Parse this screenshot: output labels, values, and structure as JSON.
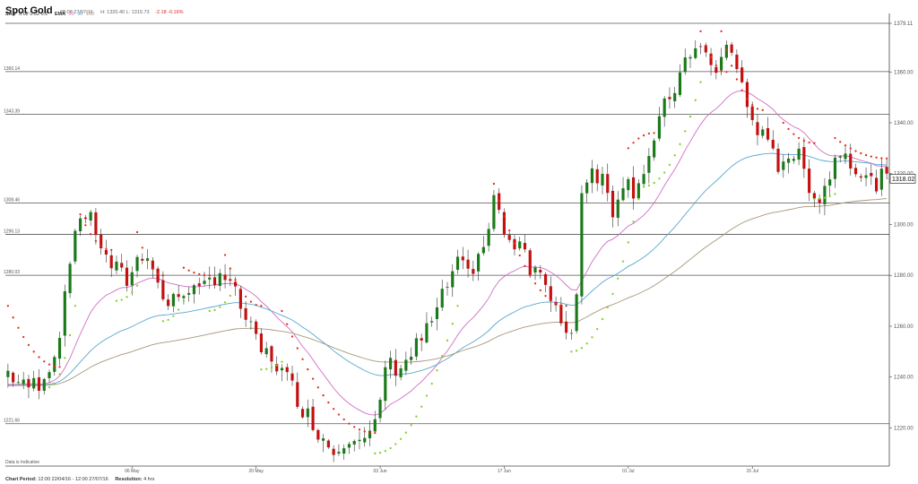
{
  "header": {
    "title": "Spot Gold",
    "datetime": "08:08 27/07/16",
    "hl": "H: 1320.40  L: 1315.73",
    "change": "-2.18  -0.16%"
  },
  "indicators": {
    "sar_label": "SAR",
    "sar_params": "0.02  0.02  0.2",
    "ema_label": "EMA",
    "ema_p1": "20",
    "ema_p2": "50",
    "ema_p3": "100"
  },
  "footer": {
    "period_label": "Chart Period:",
    "period_value": "12:00 22/04/16 - 12:00 27/07/16",
    "resolution_label": "Resolution:",
    "resolution_value": "4 hrs",
    "disclaimer": "Data is Indicative"
  },
  "colors": {
    "up": "#1a7a1a",
    "down": "#c41010",
    "sar_up": "#7ed321",
    "sar_down": "#e0301e",
    "ema20": "#d16ec4",
    "ema50": "#58a8d0",
    "ema100": "#a89878",
    "hline": "#555555",
    "axis": "#444444"
  },
  "chart_data": {
    "type": "candlestick",
    "ylim": [
      1205,
      1383
    ],
    "yticks": [
      "1220.00",
      "1240.00",
      "1260.00",
      "1280.00",
      "1300.00",
      "1320.00",
      "1340.00",
      "1360.00",
      "1379.11"
    ],
    "ytick_values": [
      1220,
      1240,
      1260,
      1280,
      1300,
      1320,
      1340,
      1360,
      1379.11
    ],
    "last_price": "1318.02",
    "last_value": 1318.02,
    "xticks": [
      "06 May",
      "20 May",
      "03 Jun",
      "17 Jun",
      "01 Jul",
      "15 Jul"
    ],
    "xtick_index": [
      24,
      48,
      72,
      96,
      120,
      144
    ],
    "hlines": [
      {
        "label": "1360.14",
        "value": 1360.14
      },
      {
        "label": "1343.39",
        "value": 1343.39
      },
      {
        "label": "1308.46",
        "value": 1308.46
      },
      {
        "label": "1296.13",
        "value": 1296.13
      },
      {
        "label": "1280.03",
        "value": 1280.03
      },
      {
        "label": "1221.66",
        "value": 1221.66
      }
    ],
    "anchors": [
      [
        0,
        1242
      ],
      [
        3,
        1236
      ],
      [
        6,
        1238
      ],
      [
        9,
        1248
      ],
      [
        11,
        1270
      ],
      [
        13,
        1300
      ],
      [
        15,
        1304
      ],
      [
        17,
        1298
      ],
      [
        19,
        1286
      ],
      [
        21,
        1282
      ],
      [
        23,
        1278
      ],
      [
        25,
        1286
      ],
      [
        27,
        1290
      ],
      [
        29,
        1276
      ],
      [
        31,
        1268
      ],
      [
        33,
        1272
      ],
      [
        35,
        1276
      ],
      [
        37,
        1272
      ],
      [
        39,
        1278
      ],
      [
        41,
        1282
      ],
      [
        43,
        1276
      ],
      [
        45,
        1268
      ],
      [
        47,
        1258
      ],
      [
        49,
        1250
      ],
      [
        51,
        1248
      ],
      [
        53,
        1242
      ],
      [
        55,
        1236
      ],
      [
        57,
        1228
      ],
      [
        59,
        1222
      ],
      [
        61,
        1216
      ],
      [
        63,
        1211
      ],
      [
        65,
        1216
      ],
      [
        67,
        1218
      ],
      [
        69,
        1214
      ],
      [
        71,
        1220
      ],
      [
        72,
        1230
      ],
      [
        73,
        1245
      ],
      [
        75,
        1244
      ],
      [
        77,
        1246
      ],
      [
        79,
        1252
      ],
      [
        81,
        1258
      ],
      [
        83,
        1266
      ],
      [
        85,
        1276
      ],
      [
        87,
        1284
      ],
      [
        89,
        1280
      ],
      [
        91,
        1288
      ],
      [
        93,
        1296
      ],
      [
        94,
        1312
      ],
      [
        95,
        1304
      ],
      [
        97,
        1290
      ],
      [
        99,
        1296
      ],
      [
        101,
        1284
      ],
      [
        103,
        1282
      ],
      [
        105,
        1268
      ],
      [
        107,
        1262
      ],
      [
        109,
        1258
      ],
      [
        110,
        1272
      ],
      [
        111,
        1315
      ],
      [
        113,
        1322
      ],
      [
        115,
        1318
      ],
      [
        117,
        1306
      ],
      [
        119,
        1318
      ],
      [
        121,
        1314
      ],
      [
        123,
        1322
      ],
      [
        125,
        1332
      ],
      [
        127,
        1346
      ],
      [
        129,
        1354
      ],
      [
        131,
        1362
      ],
      [
        133,
        1372
      ],
      [
        135,
        1366
      ],
      [
        137,
        1358
      ],
      [
        139,
        1372
      ],
      [
        141,
        1362
      ],
      [
        143,
        1346
      ],
      [
        145,
        1338
      ],
      [
        147,
        1330
      ],
      [
        149,
        1324
      ],
      [
        151,
        1328
      ],
      [
        153,
        1326
      ],
      [
        155,
        1316
      ],
      [
        157,
        1310
      ],
      [
        159,
        1320
      ],
      [
        161,
        1330
      ],
      [
        163,
        1326
      ],
      [
        165,
        1320
      ],
      [
        167,
        1316
      ],
      [
        169,
        1318
      ],
      [
        170,
        1318
      ]
    ],
    "sar": [
      {
        "start": 0,
        "end": 10,
        "dir": "down",
        "from": 1268,
        "to": 1244
      },
      {
        "start": 8,
        "end": 13,
        "dir": "up",
        "from": 1236,
        "to": 1268
      },
      {
        "start": 14,
        "end": 20,
        "dir": "down",
        "from": 1304,
        "to": 1290
      },
      {
        "start": 21,
        "end": 25,
        "dir": "up",
        "from": 1270,
        "to": 1276
      },
      {
        "start": 25,
        "end": 30,
        "dir": "down",
        "from": 1297,
        "to": 1280
      },
      {
        "start": 30,
        "end": 34,
        "dir": "up",
        "from": 1262,
        "to": 1270
      },
      {
        "start": 34,
        "end": 39,
        "dir": "down",
        "from": 1283,
        "to": 1280
      },
      {
        "start": 39,
        "end": 43,
        "dir": "up",
        "from": 1266,
        "to": 1272
      },
      {
        "start": 42,
        "end": 49,
        "dir": "down",
        "from": 1288,
        "to": 1268
      },
      {
        "start": 49,
        "end": 53,
        "dir": "up",
        "from": 1243,
        "to": 1246
      },
      {
        "start": 53,
        "end": 71,
        "dir": "down",
        "from": 1266,
        "to": 1218
      },
      {
        "start": 71,
        "end": 87,
        "dir": "up",
        "from": 1210,
        "to": 1268
      },
      {
        "start": 94,
        "end": 108,
        "dir": "down",
        "from": 1316,
        "to": 1268
      },
      {
        "start": 109,
        "end": 122,
        "dir": "up",
        "from": 1250,
        "to": 1310
      },
      {
        "start": 120,
        "end": 125,
        "dir": "down",
        "from": 1330,
        "to": 1336
      },
      {
        "start": 123,
        "end": 134,
        "dir": "up",
        "from": 1315,
        "to": 1356
      },
      {
        "start": 134,
        "end": 139,
        "dir": "down",
        "from": 1376,
        "to": 1360
      },
      {
        "start": 138,
        "end": 146,
        "dir": "down",
        "from": 1376,
        "to": 1345
      },
      {
        "start": 150,
        "end": 156,
        "dir": "down",
        "from": 1340,
        "to": 1332
      },
      {
        "start": 156,
        "end": 160,
        "dir": "up",
        "from": 1310,
        "to": 1312
      },
      {
        "start": 160,
        "end": 170,
        "dir": "down",
        "from": 1334,
        "to": 1326
      }
    ]
  }
}
